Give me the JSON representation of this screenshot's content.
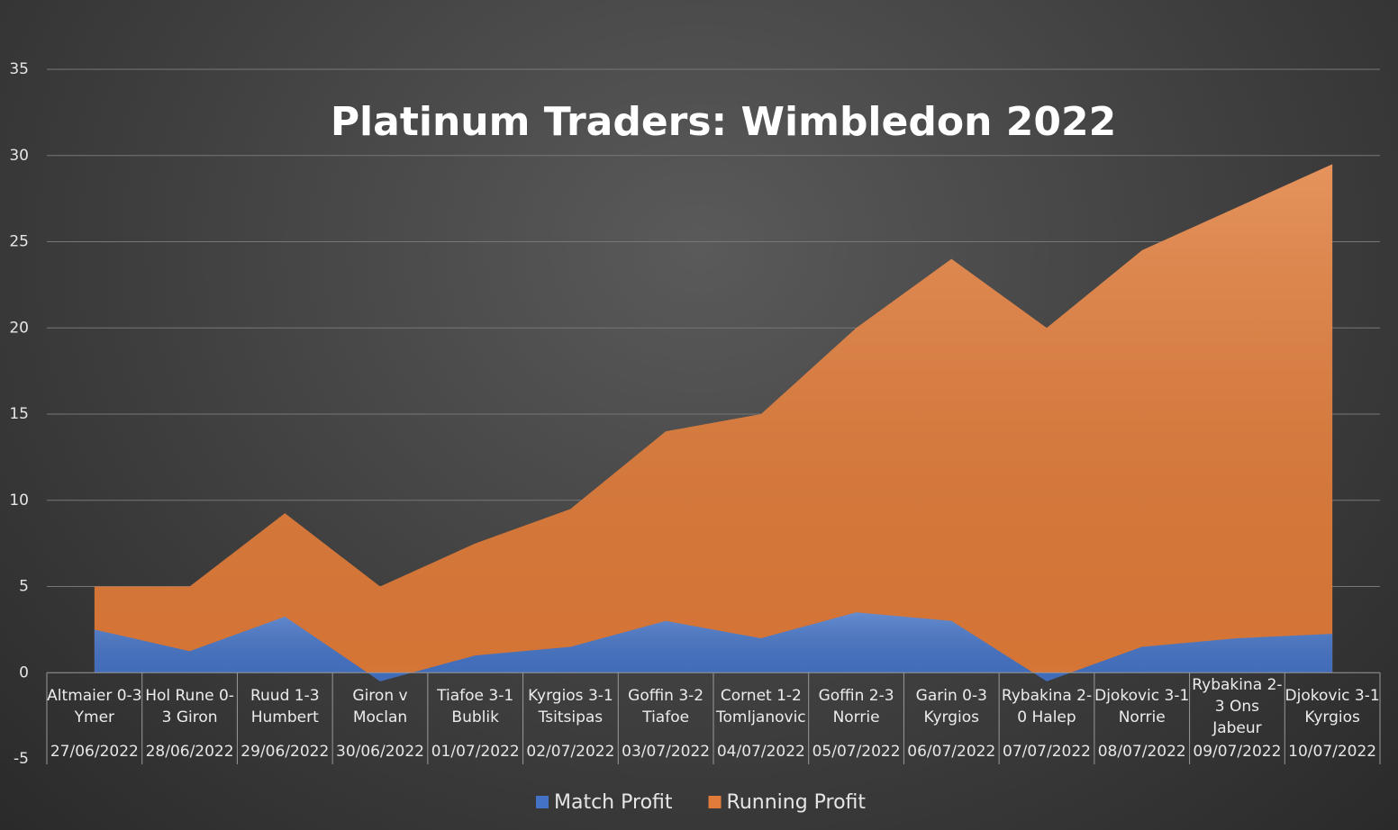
{
  "chart_data": {
    "type": "area",
    "title": "Platinum Traders: Wimbledon 2022",
    "categories": [
      "Altmaier 0-3 Ymer",
      "Hol Rune 0-3 Giron",
      "Ruud 1-3 Humbert",
      "Giron v Moclan",
      "Tiafoe 3-1 Bublik",
      "Kyrgios 3-1 Tsitsipas",
      "Goffin 3-2 Tiafoe",
      "Cornet 1-2 Tomljanovic",
      "Goffin 2-3 Norrie",
      "Garin 0-3 Kyrgios",
      "Rybakina 2-0 Halep",
      "Djokovic 3-1 Norrie",
      "Rybakina 2-3 Ons Jabeur",
      "Djokovic 3-1 Kyrgios"
    ],
    "dates": [
      "27/06/2022",
      "28/06/2022",
      "29/06/2022",
      "30/06/2022",
      "01/07/2022",
      "02/07/2022",
      "03/07/2022",
      "04/07/2022",
      "05/07/2022",
      "06/07/2022",
      "07/07/2022",
      "08/07/2022",
      "09/07/2022",
      "10/07/2022"
    ],
    "series": [
      {
        "name": "Running Profit",
        "color": "#e07b39",
        "values": [
          5,
          5,
          9.25,
          5,
          7.5,
          9.5,
          14,
          15,
          20,
          24,
          20,
          24.5,
          27,
          29.5
        ]
      },
      {
        "name": "Match Profit",
        "color": "#4472c4",
        "values": [
          2.5,
          1.25,
          3.25,
          -0.5,
          1,
          1.5,
          3,
          2,
          3.5,
          3,
          -0.5,
          1.5,
          2,
          2.25
        ]
      }
    ],
    "ylim": [
      -5,
      35
    ],
    "yticks": [
      -5,
      0,
      5,
      10,
      15,
      20,
      25,
      30,
      35
    ],
    "grid": true
  }
}
